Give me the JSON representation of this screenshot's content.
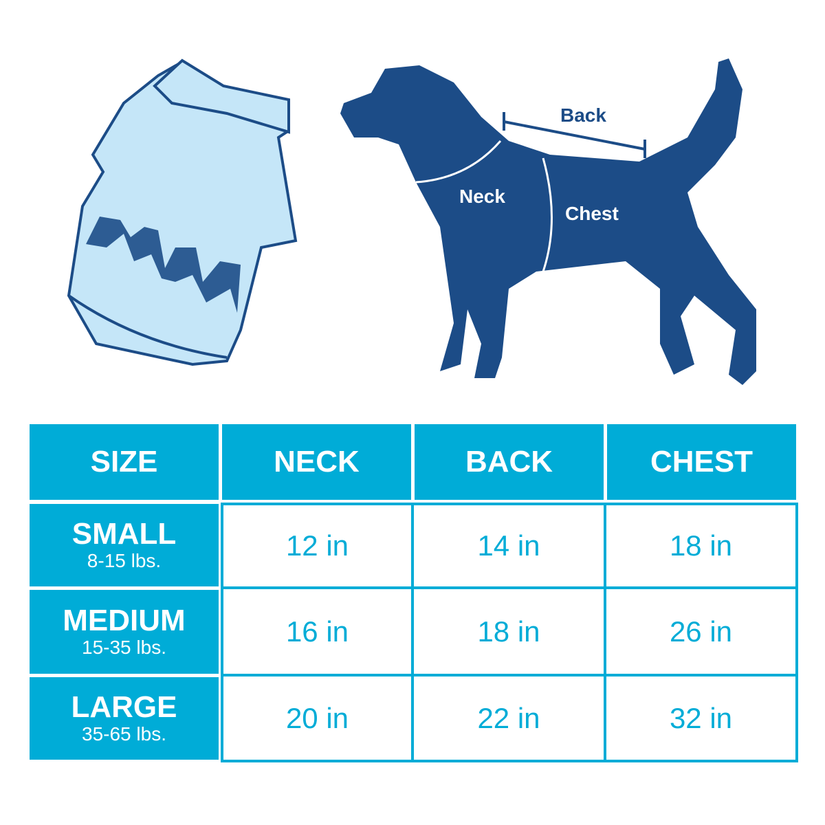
{
  "colors": {
    "accent": "#00acd7",
    "dog": "#1c4c87",
    "shirt": "#c5e6f8"
  },
  "diagram": {
    "labels": {
      "back": "Back",
      "neck": "Neck",
      "chest": "Chest"
    }
  },
  "table": {
    "headers": [
      "SIZE",
      "NECK",
      "BACK",
      "CHEST"
    ],
    "rows": [
      {
        "size": "SMALL",
        "weight": "8-15 lbs.",
        "neck": "12 in",
        "back": "14 in",
        "chest": "18 in"
      },
      {
        "size": "MEDIUM",
        "weight": "15-35 lbs.",
        "neck": "16 in",
        "back": "18 in",
        "chest": "26 in"
      },
      {
        "size": "LARGE",
        "weight": "35-65 lbs.",
        "neck": "20 in",
        "back": "22 in",
        "chest": "32 in"
      }
    ]
  }
}
